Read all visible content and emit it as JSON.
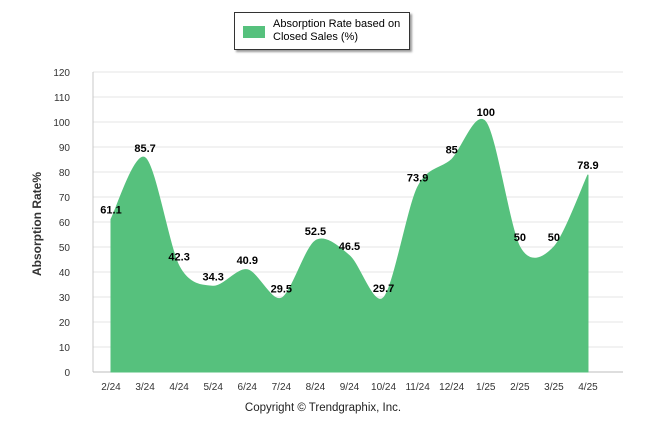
{
  "chart_data": {
    "type": "area",
    "categories": [
      "2/24",
      "3/24",
      "4/24",
      "5/24",
      "6/24",
      "7/24",
      "8/24",
      "9/24",
      "10/24",
      "11/24",
      "12/24",
      "1/25",
      "2/25",
      "3/25",
      "4/25"
    ],
    "series": [
      {
        "name": "Absorption Rate based on Closed Sales (%)",
        "values": [
          61.1,
          85.7,
          42.3,
          34.3,
          40.9,
          29.5,
          52.5,
          46.5,
          29.7,
          73.9,
          85,
          100,
          50,
          50,
          78.9
        ],
        "labels": [
          "61.1",
          "85.7",
          "42.3",
          "34.3",
          "40.9",
          "29.5",
          "52.5",
          "46.5",
          "29.7",
          "73.9",
          "85",
          "100",
          "50",
          "50",
          "78.9"
        ],
        "color": "#56c17d"
      }
    ],
    "ylabel": "Absorption Rate%",
    "xlabel": "",
    "ylim": [
      0,
      120
    ],
    "yticks": [
      "0",
      "10",
      "20",
      "30",
      "40",
      "50",
      "60",
      "70",
      "80",
      "90",
      "100",
      "110",
      "120"
    ],
    "grid": true,
    "legend_position": "top-center"
  },
  "footer": {
    "copyright": "Copyright © Trendgraphix, Inc."
  }
}
